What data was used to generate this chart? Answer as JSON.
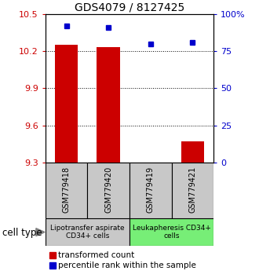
{
  "title": "GDS4079 / 8127425",
  "samples": [
    "GSM779418",
    "GSM779420",
    "GSM779419",
    "GSM779421"
  ],
  "transformed_counts": [
    10.25,
    10.235,
    9.302,
    9.47
  ],
  "percentile_ranks": [
    92,
    91,
    80,
    81
  ],
  "ylim_left": [
    9.3,
    10.5
  ],
  "ylim_right": [
    0,
    100
  ],
  "yticks_left": [
    9.3,
    9.6,
    9.9,
    10.2,
    10.5
  ],
  "yticks_right": [
    0,
    25,
    50,
    75,
    100
  ],
  "ytick_labels_right": [
    "0",
    "25",
    "50",
    "75",
    "100%"
  ],
  "bar_color": "#cc0000",
  "dot_color": "#0000cc",
  "groups": [
    {
      "label": "Lipotransfer aspirate\nCD34+ cells",
      "indices": [
        0,
        1
      ],
      "color": "#c8c8c8"
    },
    {
      "label": "Leukapheresis CD34+\ncells",
      "indices": [
        2,
        3
      ],
      "color": "#77ee77"
    }
  ],
  "cell_type_label": "cell type",
  "legend_red_label": "transformed count",
  "legend_blue_label": "percentile rank within the sample",
  "bar_width": 0.55,
  "background_color": "#ffffff",
  "plot_bg": "#ffffff",
  "grid_color": "#000000"
}
